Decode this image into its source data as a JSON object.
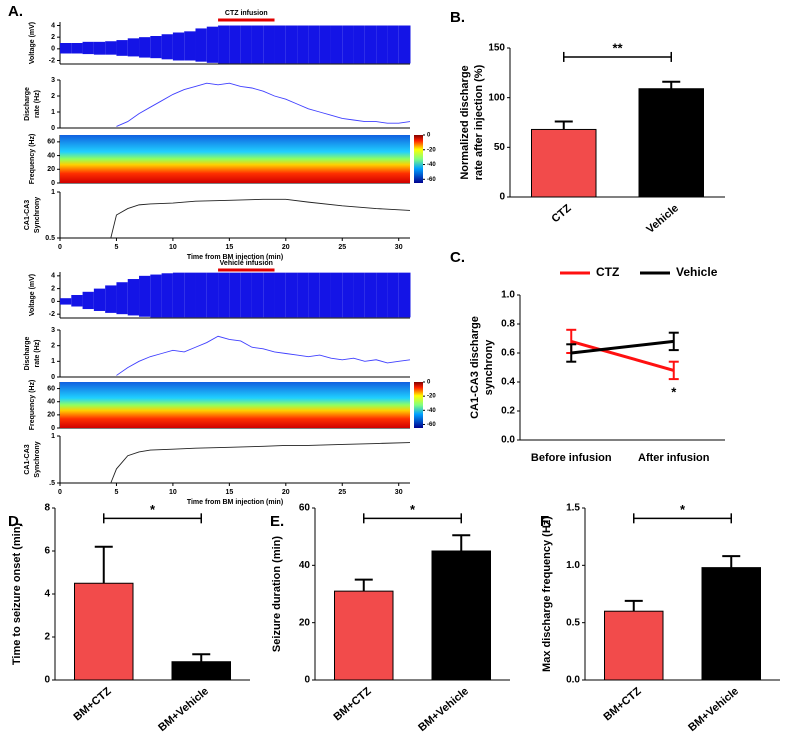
{
  "chart_data": [
    {
      "type": "area",
      "label": "A.",
      "annotation": "CTZ infusion",
      "infusion": [
        14,
        19
      ],
      "ylabel": "Voltage (mV)",
      "color": "#1414e6",
      "x": [
        0,
        1,
        2,
        3,
        4,
        5,
        6,
        7,
        8,
        9,
        10,
        11,
        12,
        13,
        14,
        15,
        16,
        17,
        18,
        19,
        20,
        21,
        22,
        23,
        24,
        25,
        26,
        27,
        28,
        29,
        30,
        31
      ],
      "upper": [
        1,
        1,
        1.2,
        1.2,
        1.3,
        1.5,
        1.8,
        2,
        2.2,
        2.5,
        2.8,
        3,
        3.5,
        3.8,
        4,
        4,
        4,
        4,
        4,
        4,
        4,
        4,
        4,
        4,
        4,
        4,
        4,
        4,
        4,
        4,
        4,
        4
      ],
      "lower": [
        -0.8,
        -0.8,
        -0.9,
        -1,
        -1,
        -1.2,
        -1.3,
        -1.5,
        -1.6,
        -1.8,
        -2,
        -2,
        -2.2,
        -2.4,
        -2.5,
        -2.5,
        -2.5,
        -2.5,
        -2.5,
        -2.5,
        -2.5,
        -2.5,
        -2.5,
        -2.5,
        -2.5,
        -2.5,
        -2.5,
        -2.5,
        -2.5,
        -2.5,
        -2.5,
        -2.5
      ],
      "xlim": [
        0,
        31
      ],
      "ylim": [
        -2.6,
        4.6
      ],
      "yticks": [
        -2,
        0,
        2,
        4
      ]
    },
    {
      "type": "line",
      "ylabel": [
        "Discharge",
        "rate (Hz)"
      ],
      "color": "#4040ff",
      "x": [
        5,
        6,
        7,
        8,
        9,
        10,
        11,
        12,
        13,
        14,
        15,
        16,
        17,
        18,
        19,
        20,
        21,
        22,
        23,
        24,
        25,
        26,
        27,
        28,
        29,
        30,
        31
      ],
      "values": [
        0.1,
        0.4,
        0.9,
        1.3,
        1.7,
        2.1,
        2.4,
        2.6,
        2.8,
        2.7,
        2.8,
        2.6,
        2.5,
        2.3,
        2.0,
        1.8,
        1.5,
        1.2,
        1.0,
        0.8,
        0.6,
        0.5,
        0.4,
        0.4,
        0.3,
        0.3,
        0.4
      ],
      "xlim": [
        0,
        31
      ],
      "ylim": [
        0,
        3
      ],
      "yticks": [
        0,
        1,
        2,
        3
      ]
    },
    {
      "type": "heatmap",
      "ylabel": "Frequency (Hz)",
      "xlim": [
        0,
        31
      ],
      "ylim": [
        0,
        70
      ],
      "yticks": [
        0,
        20,
        40,
        60
      ],
      "colorbar_lim": [
        -65,
        0
      ],
      "colorbar_ticks": [
        0,
        -20,
        -40,
        -60
      ]
    },
    {
      "type": "line",
      "ylabel": [
        "CA1-CA3",
        "Synchrony"
      ],
      "xlabel": "Time from BM injection (min)",
      "color": "#222222",
      "x": [
        4.5,
        5,
        6,
        7,
        8,
        10,
        12,
        15,
        18,
        20,
        22,
        25,
        28,
        31
      ],
      "values": [
        0.5,
        0.75,
        0.82,
        0.86,
        0.87,
        0.88,
        0.9,
        0.91,
        0.92,
        0.92,
        0.89,
        0.85,
        0.82,
        0.8
      ],
      "xlim": [
        0,
        31
      ],
      "ylim": [
        0.5,
        1
      ],
      "yticks": [
        0.5,
        1
      ],
      "xticks": [
        0,
        5,
        10,
        15,
        20,
        25,
        30
      ]
    },
    {
      "type": "area",
      "annotation": "Vehicle infusion",
      "infusion": [
        14,
        19
      ],
      "ylabel": "Voltage (mV)",
      "color": "#1414e6",
      "x": [
        0,
        1,
        2,
        3,
        4,
        5,
        6,
        7,
        8,
        9,
        10,
        11,
        12,
        13,
        14,
        15,
        16,
        17,
        18,
        19,
        20,
        21,
        22,
        23,
        24,
        25,
        26,
        27,
        28,
        29,
        30,
        31
      ],
      "upper": [
        0.5,
        1,
        1.5,
        2,
        2.5,
        3,
        3.5,
        4,
        4.2,
        4.4,
        4.5,
        4.5,
        4.5,
        4.5,
        4.5,
        4.5,
        4.5,
        4.5,
        4.5,
        4.5,
        4.5,
        4.5,
        4.5,
        4.5,
        4.5,
        4.5,
        4.5,
        4.5,
        4.5,
        4.5,
        4.5,
        4.5
      ],
      "lower": [
        -0.5,
        -0.8,
        -1.2,
        -1.5,
        -1.8,
        -2,
        -2.2,
        -2.4,
        -2.5,
        -2.5,
        -2.5,
        -2.5,
        -2.5,
        -2.5,
        -2.5,
        -2.5,
        -2.5,
        -2.5,
        -2.5,
        -2.5,
        -2.5,
        -2.5,
        -2.5,
        -2.5,
        -2.5,
        -2.5,
        -2.5,
        -2.5,
        -2.5,
        -2.5,
        -2.5,
        -2.5
      ],
      "xlim": [
        0,
        31
      ],
      "ylim": [
        -2.6,
        4.6
      ],
      "yticks": [
        -2,
        0,
        2,
        4
      ]
    },
    {
      "type": "line",
      "ylabel": [
        "Discharge",
        "rate (Hz)"
      ],
      "color": "#4040ff",
      "x": [
        5,
        6,
        7,
        8,
        9,
        10,
        11,
        12,
        13,
        14,
        15,
        16,
        17,
        18,
        19,
        20,
        21,
        22,
        23,
        24,
        25,
        26,
        27,
        28,
        29,
        30,
        31
      ],
      "values": [
        0.1,
        0.6,
        1.0,
        1.3,
        1.5,
        1.7,
        1.6,
        1.9,
        2.2,
        2.6,
        2.4,
        2.3,
        1.9,
        1.8,
        1.6,
        1.5,
        1.4,
        1.3,
        1.4,
        1.2,
        1.1,
        1.2,
        1.0,
        1.1,
        0.9,
        1.0,
        1.1
      ],
      "xlim": [
        0,
        31
      ],
      "ylim": [
        0,
        3
      ],
      "yticks": [
        0,
        1,
        2,
        3
      ]
    },
    {
      "type": "heatmap",
      "ylabel": "Frequency (Hz)",
      "xlim": [
        0,
        31
      ],
      "ylim": [
        0,
        70
      ],
      "yticks": [
        0,
        20,
        40,
        60
      ],
      "colorbar_lim": [
        -65,
        0
      ],
      "colorbar_ticks": [
        0,
        -20,
        -40,
        -60
      ]
    },
    {
      "type": "line",
      "ylabel": [
        "CA1-CA3",
        "Synchrony"
      ],
      "xlabel": "Time from BM injection (min)",
      "color": "#222222",
      "x": [
        4.5,
        5,
        6,
        7,
        8,
        10,
        12,
        15,
        18,
        20,
        22,
        25,
        28,
        31
      ],
      "values": [
        0.5,
        0.65,
        0.79,
        0.83,
        0.85,
        0.86,
        0.87,
        0.88,
        0.89,
        0.9,
        0.9,
        0.91,
        0.92,
        0.93
      ],
      "xlim": [
        0,
        31
      ],
      "ylim": [
        0.5,
        1
      ],
      "yticks": [
        {
          "value": 0.5,
          "label": ".5"
        },
        1
      ],
      "xticks": [
        0,
        5,
        10,
        15,
        20,
        25,
        30
      ]
    },
    {
      "type": "bar",
      "label": "B.",
      "ylabel": [
        "Normalized discharge",
        "rate after injection (%)"
      ],
      "significance": "**",
      "categories": [
        "CTZ",
        "Vehicle"
      ],
      "values": [
        68,
        109
      ],
      "errors": [
        8,
        7
      ],
      "colors": [
        "#f24b4b",
        "#000000"
      ],
      "ylim": [
        0,
        150
      ],
      "yticks": [
        0,
        50,
        100,
        150
      ]
    },
    {
      "type": "line",
      "label": "C.",
      "ylabel": [
        "CA1-CA3 discharge",
        "synchrony"
      ],
      "annotation": "*",
      "categories": [
        "Before infusion",
        "After infusion"
      ],
      "series": [
        {
          "name": "CTZ",
          "color": "#ff1010",
          "values": [
            0.68,
            0.48
          ],
          "errors": [
            0.08,
            0.06
          ]
        },
        {
          "name": "Vehicle",
          "color": "#000000",
          "values": [
            0.6,
            0.68
          ],
          "errors": [
            0.06,
            0.06
          ]
        }
      ],
      "ylim": [
        0,
        1
      ],
      "yticks": [
        {
          "value": 0,
          "label": "0.0"
        },
        0.2,
        0.4,
        0.6,
        0.8,
        {
          "value": 1,
          "label": "1.0"
        }
      ]
    },
    {
      "type": "bar",
      "label": "D.",
      "ylabel": "Time to seizure onset (min)",
      "significance": "*",
      "categories": [
        "BM+CTZ",
        "BM+Vehicle"
      ],
      "values": [
        4.5,
        0.85
      ],
      "errors": [
        1.7,
        0.35
      ],
      "colors": [
        "#f24b4b",
        "#000000"
      ],
      "ylim": [
        0,
        8
      ],
      "yticks": [
        0,
        2,
        4,
        6,
        8
      ]
    },
    {
      "type": "bar",
      "label": "E.",
      "ylabel": "Seizure duration (min)",
      "significance": "*",
      "categories": [
        "BM+CTZ",
        "BM+Vehicle"
      ],
      "values": [
        31,
        45
      ],
      "errors": [
        4,
        5.5
      ],
      "colors": [
        "#f24b4b",
        "#000000"
      ],
      "ylim": [
        0,
        60
      ],
      "yticks": [
        0,
        20,
        40,
        60
      ]
    },
    {
      "type": "bar",
      "label": "F.",
      "ylabel": "Max discharge frequency (Hz)",
      "significance": "*",
      "categories": [
        "BM+CTZ",
        "BM+Vehicle"
      ],
      "values": [
        0.6,
        0.98
      ],
      "errors": [
        0.09,
        0.1
      ],
      "colors": [
        "#f24b4b",
        "#000000"
      ],
      "ylim": [
        0,
        1.5
      ],
      "yticks": [
        {
          "value": 0,
          "label": "0.0"
        },
        0.5,
        {
          "value": 1,
          "label": "1.0"
        },
        1.5
      ]
    }
  ]
}
